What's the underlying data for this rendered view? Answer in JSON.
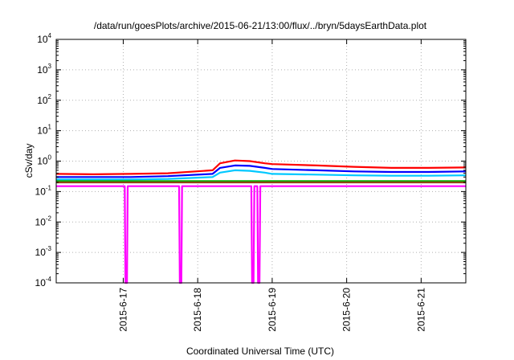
{
  "chart_data": {
    "type": "line",
    "title": "/data/run/goesPlots/archive/2015-06-21/13:00/flux/../bryn/5daysEarthData.plot",
    "xlabel": "Coordinated Universal Time (UTC)",
    "ylabel": "cSv/day",
    "y_scale": "log",
    "ylim": [
      0.0001,
      10000
    ],
    "xlim": [
      0,
      5.5
    ],
    "y_ticks": [
      {
        "base": "10",
        "exp": "4",
        "value": 10000
      },
      {
        "base": "10",
        "exp": "3",
        "value": 1000
      },
      {
        "base": "10",
        "exp": "2",
        "value": 100
      },
      {
        "base": "10",
        "exp": "1",
        "value": 10
      },
      {
        "base": "10",
        "exp": "0",
        "value": 1
      },
      {
        "base": "10",
        "exp": "-1",
        "value": 0.1
      },
      {
        "base": "10",
        "exp": "-2",
        "value": 0.01
      },
      {
        "base": "10",
        "exp": "-3",
        "value": 0.001
      },
      {
        "base": "10",
        "exp": "-4",
        "value": 0.0001
      }
    ],
    "x_ticks": [
      {
        "label": "2015-6-17",
        "value": 0.9
      },
      {
        "label": "2015-6-18",
        "value": 1.9
      },
      {
        "label": "2015-6-19",
        "value": 2.9
      },
      {
        "label": "2015-6-20",
        "value": 3.9
      },
      {
        "label": "2015-6-21",
        "value": 4.9
      }
    ],
    "grid": true,
    "series": [
      {
        "color": "#ff0000",
        "x": [
          0,
          0.5,
          1.0,
          1.5,
          2.1,
          2.2,
          2.4,
          2.6,
          2.8,
          2.9,
          3.5,
          4.0,
          4.5,
          5.0,
          5.5
        ],
        "y": [
          0.38,
          0.37,
          0.38,
          0.4,
          0.5,
          0.85,
          1.05,
          1.0,
          0.85,
          0.8,
          0.72,
          0.65,
          0.6,
          0.6,
          0.62
        ]
      },
      {
        "color": "#0000ff",
        "x": [
          0,
          0.5,
          1.0,
          1.5,
          2.1,
          2.2,
          2.4,
          2.6,
          2.8,
          2.9,
          3.5,
          4.0,
          4.5,
          5.0,
          5.5
        ],
        "y": [
          0.3,
          0.3,
          0.3,
          0.32,
          0.38,
          0.6,
          0.72,
          0.7,
          0.6,
          0.55,
          0.5,
          0.46,
          0.44,
          0.44,
          0.46
        ]
      },
      {
        "color": "#00c8ff",
        "x": [
          0,
          0.5,
          1.0,
          1.5,
          2.1,
          2.2,
          2.4,
          2.6,
          2.8,
          2.9,
          3.5,
          4.0,
          4.5,
          5.0,
          5.5
        ],
        "y": [
          0.25,
          0.25,
          0.25,
          0.26,
          0.3,
          0.42,
          0.5,
          0.48,
          0.42,
          0.38,
          0.36,
          0.34,
          0.33,
          0.33,
          0.34
        ]
      },
      {
        "color": "#00b000",
        "x": [
          0,
          1.0,
          2.0,
          3.0,
          4.0,
          5.0,
          5.5
        ],
        "y": [
          0.22,
          0.22,
          0.22,
          0.22,
          0.22,
          0.22,
          0.22
        ]
      },
      {
        "color": "#8b4513",
        "x": [
          0,
          1.0,
          2.0,
          3.0,
          4.0,
          5.0,
          5.5
        ],
        "y": [
          0.2,
          0.2,
          0.2,
          0.2,
          0.2,
          0.2,
          0.2
        ]
      },
      {
        "color": "#ff00ff",
        "x": [
          0,
          0.92,
          0.93,
          0.95,
          0.96,
          1.6,
          1.65,
          1.66,
          1.68,
          1.69,
          2.62,
          2.63,
          2.65,
          2.66,
          2.7,
          2.71,
          2.73,
          2.74,
          5.5
        ],
        "y": [
          0.15,
          0.15,
          0.0001,
          0.0001,
          0.15,
          0.15,
          0.15,
          0.0001,
          0.0001,
          0.15,
          0.15,
          0.0001,
          0.0001,
          0.15,
          0.15,
          0.0001,
          0.0001,
          0.15,
          0.15
        ]
      }
    ]
  }
}
